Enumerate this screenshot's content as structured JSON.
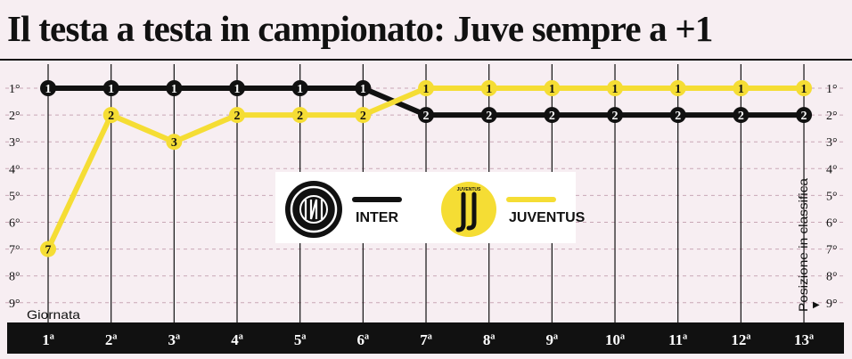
{
  "title": "Il testa a testa in campionato: Juve sempre a +1",
  "chart_data": {
    "type": "line",
    "title": "Il testa a testa in campionato: Juve sempre a +1",
    "categories": [
      "1ª",
      "2ª",
      "3ª",
      "4ª",
      "5ª",
      "6ª",
      "7ª",
      "8ª",
      "9ª",
      "10ª",
      "11ª",
      "12ª",
      "13ª"
    ],
    "x_label": "Giornata",
    "y_label": "Posizione in classifica",
    "y_ticks": [
      "1°",
      "2°",
      "3°",
      "4°",
      "5°",
      "6°",
      "7°",
      "8°",
      "9°"
    ],
    "ylim": [
      1,
      9
    ],
    "y_inverted": true,
    "series": [
      {
        "name": "INTER",
        "color": "#111111",
        "values": [
          1,
          1,
          1,
          1,
          1,
          1,
          2,
          2,
          2,
          2,
          2,
          2,
          2
        ]
      },
      {
        "name": "JUVENTUS",
        "color": "#f5dd34",
        "values": [
          7,
          2,
          3,
          2,
          2,
          2,
          1,
          1,
          1,
          1,
          1,
          1,
          1
        ]
      }
    ],
    "legend": [
      {
        "name": "INTER",
        "color": "#111111",
        "logo": "inter-logo"
      },
      {
        "name": "JUVENTUS",
        "color": "#f5dd34",
        "logo": "juventus-logo",
        "logo_text": "JUVENTUS"
      }
    ],
    "legend_position": "center",
    "grid": true
  }
}
